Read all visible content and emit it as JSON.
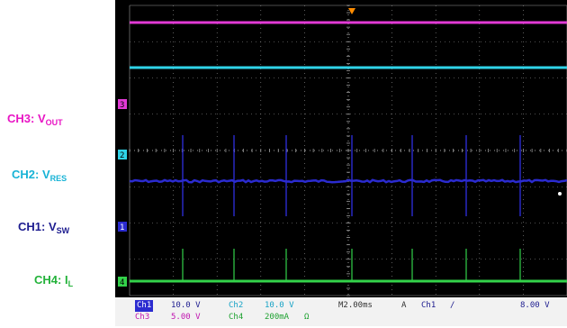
{
  "labels": {
    "ch3": {
      "prefix": "CH3: V",
      "sub": "OUT",
      "color": "#e815c4"
    },
    "ch2": {
      "prefix": "CH2: V",
      "sub": "RES",
      "color": "#17b3d6"
    },
    "ch1": {
      "prefix": "CH1: V",
      "sub": "SW",
      "color": "#1d1c8f"
    },
    "ch4": {
      "prefix": "CH4: I",
      "sub": "L",
      "color": "#23b23a"
    }
  },
  "markers": {
    "ch3": "3",
    "ch2": "2",
    "ch1": "1",
    "ch4": "4"
  },
  "status": {
    "ch1_name": "Ch1",
    "ch1_scale": "10.0 V",
    "ch2_name": "Ch2",
    "ch2_scale": "10.0 V",
    "timebase": "M2.00ms",
    "trigger_mode": "A",
    "trigger_source": "Ch1",
    "trigger_slope": "∕",
    "trigger_level": "8.00 V",
    "ch3_name": "Ch3",
    "ch3_scale": "5.00 V",
    "ch4_name": "Ch4",
    "ch4_scale": "200mA",
    "ch4_unit": "Ω"
  },
  "colors": {
    "ch1": "#2b2bd0",
    "ch2": "#2fd3e8",
    "ch3": "#e23ad6",
    "ch4": "#33d24a",
    "grid": "#9a9a9a",
    "trigger": "#ff8c00"
  }
}
